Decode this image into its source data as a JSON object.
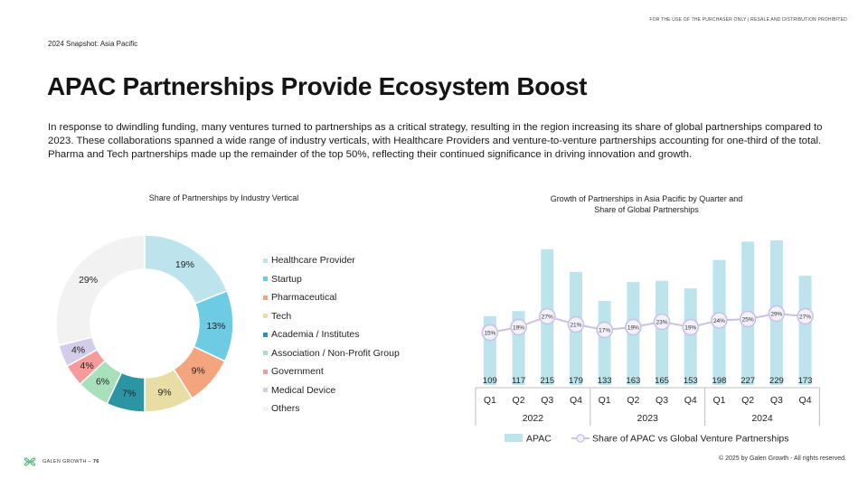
{
  "notice": "FOR THE USE OF THE PURCHASER ONLY | RESALE AND DISTRIBUTION PROHIBITED",
  "snapshot": "2024 Snapshot: Asia Pacific",
  "title": "APAC Partnerships Provide Ecosystem Boost",
  "intro": "In response to dwindling funding, many ventures turned to partnerships as a critical strategy, resulting in the region increasing its share of global partnerships compared to 2023. These collaborations spanned a wide range of industry verticals, with Healthcare Providers and venture-to-venture partnerships accounting for one-third of the total. Pharma and Tech partnerships made up the remainder of the top 50%, reflecting their continued significance in driving innovation and growth.",
  "footer": {
    "brand": "GALEN GROWTH",
    "separator": " – ",
    "page": "76",
    "copyright": "© 2025 by Galen Growth  - All rights reserved."
  },
  "chart_data": [
    {
      "type": "pie",
      "title": "Share of Partnerships by Industry Vertical",
      "categories": [
        "Healthcare Provider",
        "Startup",
        "Pharmaceutical",
        "Tech",
        "Academia / Institutes",
        "Association / Non-Profit Group",
        "Government",
        "Medical Device",
        "Others"
      ],
      "values": [
        19,
        13,
        9,
        9,
        7,
        6,
        4,
        4,
        29
      ],
      "labels": [
        "19%",
        "13%",
        "9%",
        "9%",
        "7%",
        "6%",
        "4%",
        "4%",
        "29%"
      ],
      "colors": [
        "#bde4ec",
        "#6dcbe4",
        "#f4a57d",
        "#e8dea5",
        "#2c95a4",
        "#a8e0bb",
        "#f59b9b",
        "#d3cdea",
        "#f2f2f2"
      ],
      "legend": "right"
    },
    {
      "type": "bar",
      "title": "Growth of Partnerships in Asia Pacific by Quarter and Share of Global Partnerships",
      "title_lines": [
        "Growth of Partnerships in Asia Pacific by Quarter and",
        "Share of Global Partnerships"
      ],
      "categories": [
        "Q1",
        "Q2",
        "Q3",
        "Q4",
        "Q1",
        "Q2",
        "Q3",
        "Q4",
        "Q1",
        "Q2",
        "Q3",
        "Q4"
      ],
      "groups": [
        {
          "label": "2022",
          "count": 4
        },
        {
          "label": "2023",
          "count": 4
        },
        {
          "label": "2024",
          "count": 4
        }
      ],
      "series": [
        {
          "name": "APAC",
          "type": "bar",
          "color": "#bde4ec",
          "values": [
            109,
            117,
            215,
            179,
            133,
            163,
            165,
            153,
            198,
            227,
            229,
            173
          ]
        },
        {
          "name": "Share of APAC vs Global Venture Partnerships",
          "type": "line",
          "color": "#c9c2e6",
          "values": [
            15,
            19,
            27,
            21,
            17,
            19,
            23,
            19,
            24,
            25,
            29,
            27
          ],
          "labels": [
            "15%",
            "19%",
            "27%",
            "21%",
            "17%",
            "19%",
            "23%",
            "19%",
            "24%",
            "25%",
            "29%",
            "27%"
          ]
        }
      ],
      "legend": "bottom"
    }
  ]
}
